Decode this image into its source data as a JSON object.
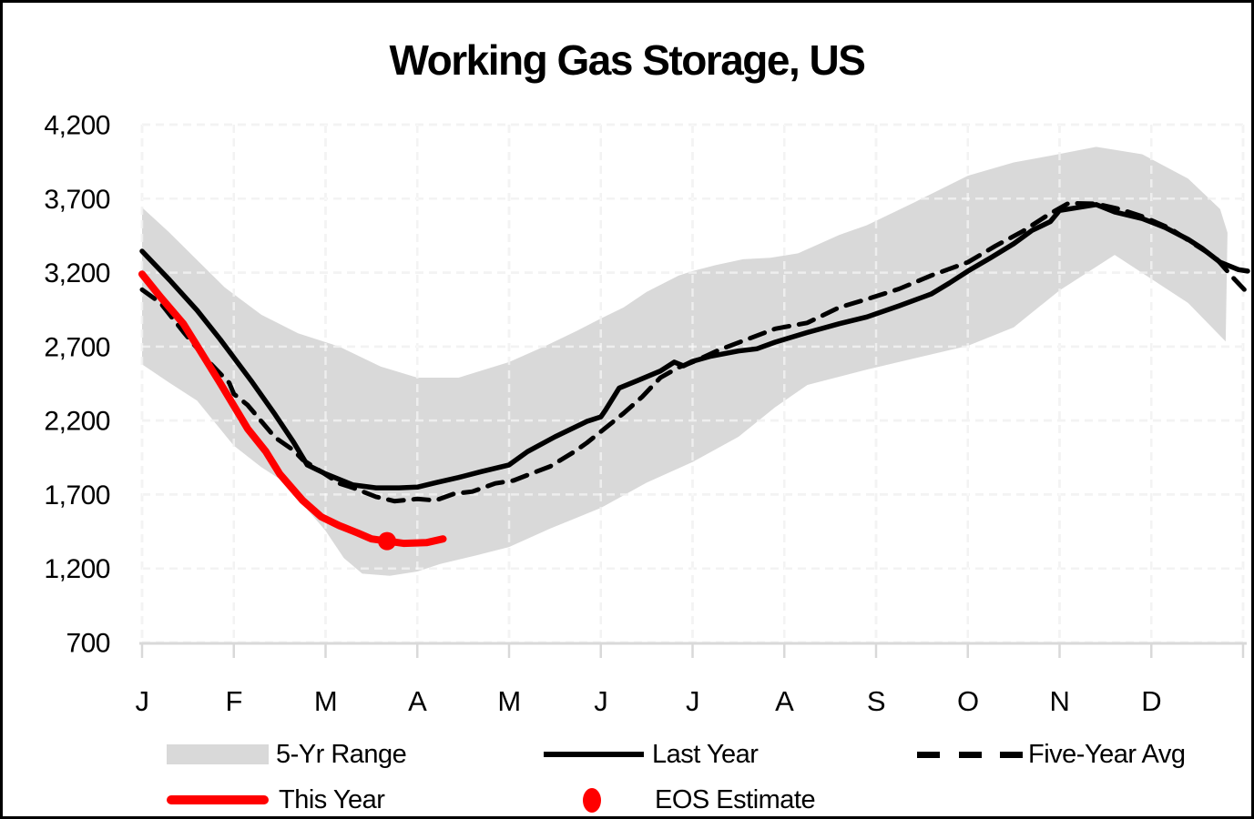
{
  "chart_data": {
    "type": "line",
    "title": "Working Gas Storage, US",
    "x_axis": {
      "labels": [
        "J",
        "F",
        "M",
        "A",
        "M",
        "J",
        "J",
        "A",
        "S",
        "O",
        "N",
        "D"
      ],
      "range_months": [
        0,
        12
      ],
      "gridlines": "dashed"
    },
    "y_axis": {
      "tick_labels": [
        "700",
        "1,200",
        "1,700",
        "2,200",
        "2,700",
        "3,200",
        "3,700",
        "4,200"
      ],
      "tick_values": [
        700,
        1200,
        1700,
        2200,
        2700,
        3200,
        3700,
        4200
      ],
      "range": [
        700,
        4200
      ],
      "gridlines": "dashed"
    },
    "colors": {
      "band": "#d9d9d9",
      "black_line": "#000000",
      "red_line": "#ff0000",
      "gridline": "#e4e4e4",
      "gridline_on_band": "rgba(255,255,255,0.55)",
      "axis_line": "#d9d9d9",
      "text": "#000000"
    },
    "series": [
      {
        "name": "5-Yr Range",
        "type": "band",
        "color": "#d9d9d9",
        "points_top": [
          [
            0,
            3640
          ],
          [
            0.3,
            3470
          ],
          [
            0.6,
            3285
          ],
          [
            0.9,
            3100
          ],
          [
            1.3,
            2915
          ],
          [
            1.7,
            2790
          ],
          [
            2.15,
            2700
          ],
          [
            2.6,
            2565
          ],
          [
            3.0,
            2490
          ],
          [
            3.45,
            2490
          ],
          [
            4.0,
            2595
          ],
          [
            4.4,
            2705
          ],
          [
            4.75,
            2810
          ],
          [
            5.0,
            2890
          ],
          [
            5.25,
            2965
          ],
          [
            5.5,
            3070
          ],
          [
            5.85,
            3180
          ],
          [
            6.0,
            3210
          ],
          [
            6.25,
            3250
          ],
          [
            6.55,
            3290
          ],
          [
            6.85,
            3300
          ],
          [
            7.15,
            3330
          ],
          [
            7.6,
            3455
          ],
          [
            7.9,
            3520
          ],
          [
            8.4,
            3670
          ],
          [
            9.0,
            3855
          ],
          [
            9.5,
            3945
          ],
          [
            9.9,
            3990
          ],
          [
            10.4,
            4050
          ],
          [
            10.9,
            4000
          ],
          [
            11.4,
            3835
          ],
          [
            11.75,
            3630
          ],
          [
            11.83,
            3470
          ]
        ],
        "points_bottom": [
          [
            0,
            2580
          ],
          [
            0.3,
            2455
          ],
          [
            0.6,
            2335
          ],
          [
            1.0,
            2030
          ],
          [
            1.3,
            1885
          ],
          [
            1.6,
            1765
          ],
          [
            1.8,
            1600
          ],
          [
            2.0,
            1455
          ],
          [
            2.2,
            1270
          ],
          [
            2.4,
            1165
          ],
          [
            2.7,
            1150
          ],
          [
            3.0,
            1180
          ],
          [
            3.25,
            1230
          ],
          [
            3.65,
            1290
          ],
          [
            4.0,
            1345
          ],
          [
            4.45,
            1470
          ],
          [
            5.0,
            1610
          ],
          [
            5.5,
            1780
          ],
          [
            6.0,
            1920
          ],
          [
            6.5,
            2090
          ],
          [
            6.9,
            2290
          ],
          [
            7.25,
            2440
          ],
          [
            7.9,
            2545
          ],
          [
            9.0,
            2705
          ],
          [
            9.5,
            2830
          ],
          [
            10.0,
            3080
          ],
          [
            10.6,
            3320
          ],
          [
            11.4,
            2995
          ],
          [
            11.81,
            2735
          ]
        ]
      },
      {
        "name": "Last Year",
        "type": "line",
        "style": "solid",
        "color": "#000000",
        "width": 5.5,
        "points": [
          [
            0,
            3345
          ],
          [
            0.3,
            3150
          ],
          [
            0.6,
            2945
          ],
          [
            0.85,
            2750
          ],
          [
            1.0,
            2625
          ],
          [
            1.2,
            2460
          ],
          [
            1.45,
            2240
          ],
          [
            1.65,
            2055
          ],
          [
            1.8,
            1900
          ],
          [
            2.0,
            1840
          ],
          [
            2.3,
            1765
          ],
          [
            2.55,
            1745
          ],
          [
            2.8,
            1745
          ],
          [
            3.0,
            1750
          ],
          [
            3.2,
            1780
          ],
          [
            3.45,
            1815
          ],
          [
            3.7,
            1855
          ],
          [
            4.0,
            1900
          ],
          [
            4.2,
            1990
          ],
          [
            4.5,
            2090
          ],
          [
            4.85,
            2195
          ],
          [
            5.0,
            2225
          ],
          [
            5.05,
            2270
          ],
          [
            5.2,
            2420
          ],
          [
            5.4,
            2470
          ],
          [
            5.65,
            2535
          ],
          [
            5.8,
            2595
          ],
          [
            5.9,
            2570
          ],
          [
            6.0,
            2600
          ],
          [
            6.2,
            2635
          ],
          [
            6.5,
            2670
          ],
          [
            6.7,
            2685
          ],
          [
            6.9,
            2730
          ],
          [
            7.25,
            2795
          ],
          [
            7.6,
            2855
          ],
          [
            7.9,
            2900
          ],
          [
            8.25,
            2975
          ],
          [
            8.6,
            3055
          ],
          [
            8.8,
            3130
          ],
          [
            9.0,
            3210
          ],
          [
            9.25,
            3300
          ],
          [
            9.5,
            3395
          ],
          [
            9.7,
            3485
          ],
          [
            9.9,
            3545
          ],
          [
            10.0,
            3620
          ],
          [
            10.4,
            3660
          ],
          [
            10.6,
            3610
          ],
          [
            10.9,
            3565
          ],
          [
            11.15,
            3505
          ],
          [
            11.4,
            3425
          ],
          [
            11.55,
            3365
          ],
          [
            11.75,
            3270
          ],
          [
            11.95,
            3220
          ],
          [
            12.05,
            3210
          ]
        ]
      },
      {
        "name": "Five-Year Avg",
        "type": "line",
        "style": "dashed",
        "color": "#000000",
        "width": 5,
        "points": [
          [
            0,
            3085
          ],
          [
            0.2,
            2995
          ],
          [
            0.45,
            2800
          ],
          [
            0.7,
            2615
          ],
          [
            0.95,
            2455
          ],
          [
            1.0,
            2380
          ],
          [
            1.15,
            2305
          ],
          [
            1.3,
            2195
          ],
          [
            1.45,
            2085
          ],
          [
            1.65,
            2000
          ],
          [
            1.75,
            1935
          ],
          [
            1.95,
            1855
          ],
          [
            2.15,
            1775
          ],
          [
            2.3,
            1745
          ],
          [
            2.55,
            1685
          ],
          [
            2.75,
            1655
          ],
          [
            3.0,
            1670
          ],
          [
            3.2,
            1660
          ],
          [
            3.4,
            1705
          ],
          [
            3.6,
            1720
          ],
          [
            3.85,
            1775
          ],
          [
            4.05,
            1795
          ],
          [
            4.3,
            1855
          ],
          [
            4.45,
            1890
          ],
          [
            4.7,
            1985
          ],
          [
            4.85,
            2050
          ],
          [
            5.05,
            2150
          ],
          [
            5.25,
            2250
          ],
          [
            5.45,
            2360
          ],
          [
            5.65,
            2490
          ],
          [
            5.85,
            2560
          ],
          [
            6.0,
            2595
          ],
          [
            6.3,
            2680
          ],
          [
            6.6,
            2750
          ],
          [
            6.9,
            2820
          ],
          [
            7.25,
            2860
          ],
          [
            7.6,
            2965
          ],
          [
            7.9,
            3020
          ],
          [
            8.25,
            3090
          ],
          [
            8.6,
            3180
          ],
          [
            9.0,
            3270
          ],
          [
            9.3,
            3380
          ],
          [
            9.6,
            3480
          ],
          [
            9.9,
            3600
          ],
          [
            10.1,
            3670
          ],
          [
            10.4,
            3665
          ],
          [
            10.65,
            3630
          ],
          [
            10.9,
            3580
          ],
          [
            11.2,
            3500
          ],
          [
            11.45,
            3400
          ],
          [
            11.7,
            3300
          ],
          [
            11.9,
            3160
          ],
          [
            12.03,
            3075
          ]
        ]
      },
      {
        "name": "This Year",
        "type": "line",
        "style": "solid",
        "color": "#ff0000",
        "width": 8,
        "points": [
          [
            0,
            3190
          ],
          [
            0.2,
            3035
          ],
          [
            0.45,
            2855
          ],
          [
            0.65,
            2655
          ],
          [
            0.85,
            2455
          ],
          [
            1.0,
            2300
          ],
          [
            1.15,
            2145
          ],
          [
            1.35,
            1990
          ],
          [
            1.5,
            1840
          ],
          [
            1.75,
            1660
          ],
          [
            1.95,
            1550
          ],
          [
            2.15,
            1490
          ],
          [
            2.35,
            1440
          ],
          [
            2.5,
            1400
          ],
          [
            2.67,
            1385
          ],
          [
            2.85,
            1370
          ],
          [
            3.1,
            1375
          ],
          [
            3.28,
            1400
          ]
        ]
      },
      {
        "name": "EOS Estimate",
        "type": "point",
        "color": "#ff0000",
        "point": [
          2.67,
          1385
        ],
        "radius": 10
      }
    ],
    "legend": {
      "position": "bottom",
      "items": [
        {
          "label": "5-Yr Range",
          "swatch": "band"
        },
        {
          "label": "Last Year",
          "swatch": "solid-black-line"
        },
        {
          "label": "Five-Year Avg",
          "swatch": "dashed-black-line"
        },
        {
          "label": "This Year",
          "swatch": "solid-red-line"
        },
        {
          "label": "EOS Estimate",
          "swatch": "red-dot"
        }
      ]
    }
  }
}
